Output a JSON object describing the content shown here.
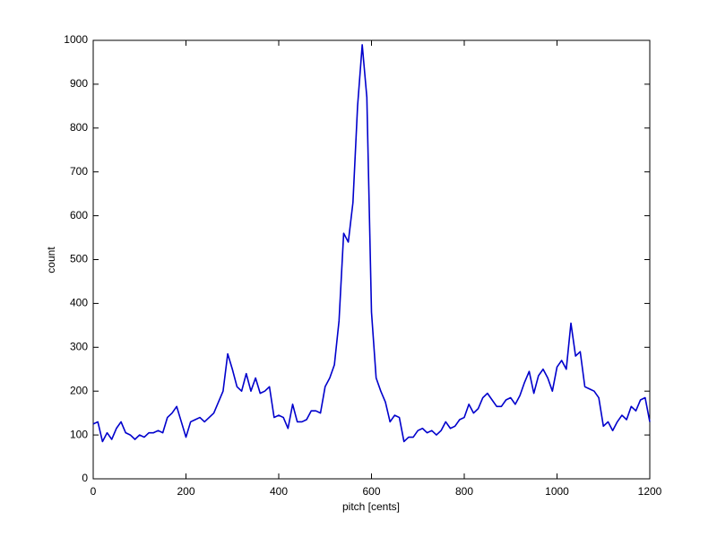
{
  "chart_data": {
    "type": "line",
    "xlabel": "pitch [cents]",
    "ylabel": "count",
    "x": [
      0,
      10,
      20,
      30,
      40,
      50,
      60,
      70,
      80,
      90,
      100,
      110,
      120,
      130,
      140,
      150,
      160,
      170,
      180,
      190,
      200,
      210,
      220,
      230,
      240,
      250,
      260,
      270,
      280,
      290,
      300,
      310,
      320,
      330,
      340,
      350,
      360,
      370,
      380,
      390,
      400,
      410,
      420,
      430,
      440,
      450,
      460,
      470,
      480,
      490,
      500,
      510,
      520,
      530,
      540,
      550,
      560,
      570,
      580,
      590,
      600,
      610,
      620,
      630,
      640,
      650,
      660,
      670,
      680,
      690,
      700,
      710,
      720,
      730,
      740,
      750,
      760,
      770,
      780,
      790,
      800,
      810,
      820,
      830,
      840,
      850,
      860,
      870,
      880,
      890,
      900,
      910,
      920,
      930,
      940,
      950,
      960,
      970,
      980,
      990,
      1000,
      1010,
      1020,
      1030,
      1040,
      1050,
      1060,
      1070,
      1080,
      1090,
      1100,
      1110,
      1120,
      1130,
      1140,
      1150,
      1160,
      1170,
      1180,
      1190,
      1200
    ],
    "series": [
      {
        "name": "count",
        "color": "#0000cc",
        "values": [
          125,
          130,
          85,
          105,
          90,
          115,
          130,
          105,
          100,
          90,
          100,
          95,
          105,
          105,
          110,
          105,
          140,
          150,
          165,
          130,
          95,
          130,
          135,
          140,
          130,
          140,
          150,
          175,
          200,
          285,
          250,
          210,
          200,
          240,
          200,
          230,
          195,
          200,
          210,
          140,
          145,
          140,
          115,
          170,
          130,
          130,
          135,
          155,
          155,
          150,
          210,
          230,
          260,
          360,
          560,
          540,
          630,
          850,
          990,
          870,
          380,
          230,
          200,
          175,
          130,
          145,
          140,
          85,
          95,
          95,
          110,
          115,
          105,
          110,
          100,
          110,
          130,
          115,
          120,
          135,
          140,
          170,
          150,
          160,
          185,
          195,
          180,
          165,
          165,
          180,
          185,
          170,
          190,
          220,
          245,
          195,
          235,
          250,
          230,
          200,
          255,
          270,
          250,
          355,
          280,
          290,
          210,
          205,
          200,
          185,
          120,
          130,
          110,
          130,
          145,
          135,
          165,
          155,
          180,
          185,
          130
        ]
      }
    ],
    "xlim": [
      0,
      1200
    ],
    "xticks": [
      0,
      200,
      400,
      600,
      800,
      1000,
      1200
    ],
    "ylim": [
      0,
      1000
    ],
    "yticks": [
      0,
      100,
      200,
      300,
      400,
      500,
      600,
      700,
      800,
      900,
      1000
    ]
  }
}
